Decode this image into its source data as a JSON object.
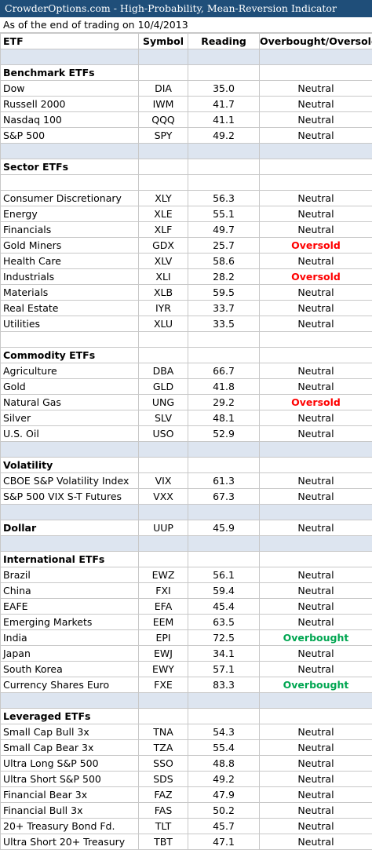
{
  "title": "CrowderOptions.com - High-Probability, Mean-Reversion Indicator",
  "subtitle": "As of the end of trading on 10/4/2013",
  "headers": [
    "ETF",
    "Symbol",
    "Reading",
    "Overbought/Oversold"
  ],
  "rows": [
    {
      "kind": "blank"
    },
    {
      "kind": "section",
      "label": "Benchmark ETFs"
    },
    {
      "kind": "data",
      "etf": "Dow",
      "symbol": "DIA",
      "reading": "35.0",
      "signal": "Neutral"
    },
    {
      "kind": "data",
      "etf": "Russell 2000",
      "symbol": "IWM",
      "reading": "41.7",
      "signal": "Neutral"
    },
    {
      "kind": "data",
      "etf": "Nasdaq 100",
      "symbol": "QQQ",
      "reading": "41.1",
      "signal": "Neutral"
    },
    {
      "kind": "data",
      "etf": "S&P 500",
      "symbol": "SPY",
      "reading": "49.2",
      "signal": "Neutral"
    },
    {
      "kind": "blank"
    },
    {
      "kind": "section",
      "label": "Sector ETFs"
    },
    {
      "kind": "empty"
    },
    {
      "kind": "data",
      "etf": "Consumer Discretionary",
      "symbol": "XLY",
      "reading": "56.3",
      "signal": "Neutral"
    },
    {
      "kind": "data",
      "etf": "Energy",
      "symbol": "XLE",
      "reading": "55.1",
      "signal": "Neutral"
    },
    {
      "kind": "data",
      "etf": "Financials",
      "symbol": "XLF",
      "reading": "49.7",
      "signal": "Neutral"
    },
    {
      "kind": "data",
      "etf": "Gold Miners",
      "symbol": "GDX",
      "reading": "25.7",
      "signal": "Oversold"
    },
    {
      "kind": "data",
      "etf": "Health Care",
      "symbol": "XLV",
      "reading": "58.6",
      "signal": "Neutral"
    },
    {
      "kind": "data",
      "etf": "Industrials",
      "symbol": "XLI",
      "reading": "28.2",
      "signal": "Oversold"
    },
    {
      "kind": "data",
      "etf": "Materials",
      "symbol": "XLB",
      "reading": "59.5",
      "signal": "Neutral"
    },
    {
      "kind": "data",
      "etf": "Real Estate",
      "symbol": "IYR",
      "reading": "33.7",
      "signal": "Neutral"
    },
    {
      "kind": "data",
      "etf": "Utilities",
      "symbol": "XLU",
      "reading": "33.5",
      "signal": "Neutral"
    },
    {
      "kind": "empty"
    },
    {
      "kind": "section",
      "label": "Commodity ETFs"
    },
    {
      "kind": "data",
      "etf": "Agriculture",
      "symbol": "DBA",
      "reading": "66.7",
      "signal": "Neutral"
    },
    {
      "kind": "data",
      "etf": "Gold",
      "symbol": "GLD",
      "reading": "41.8",
      "signal": "Neutral"
    },
    {
      "kind": "data",
      "etf": "Natural Gas",
      "symbol": "UNG",
      "reading": "29.2",
      "signal": "Oversold"
    },
    {
      "kind": "data",
      "etf": "Silver",
      "symbol": "SLV",
      "reading": "48.1",
      "signal": "Neutral"
    },
    {
      "kind": "data",
      "etf": "U.S. Oil",
      "symbol": "USO",
      "reading": "52.9",
      "signal": "Neutral"
    },
    {
      "kind": "blank"
    },
    {
      "kind": "section",
      "label": "Volatility"
    },
    {
      "kind": "data",
      "etf": "CBOE S&P Volatility Index",
      "symbol": "VIX",
      "reading": "61.3",
      "signal": "Neutral"
    },
    {
      "kind": "data",
      "etf": "S&P 500 VIX S-T Futures",
      "symbol": "VXX",
      "reading": "67.3",
      "signal": "Neutral"
    },
    {
      "kind": "blank"
    },
    {
      "kind": "section-data",
      "etf": "Dollar",
      "symbol": "UUP",
      "reading": "45.9",
      "signal": "Neutral"
    },
    {
      "kind": "blank"
    },
    {
      "kind": "section",
      "label": "International ETFs"
    },
    {
      "kind": "data",
      "etf": "Brazil",
      "symbol": "EWZ",
      "reading": "56.1",
      "signal": "Neutral"
    },
    {
      "kind": "data",
      "etf": "China",
      "symbol": "FXI",
      "reading": "59.4",
      "signal": "Neutral"
    },
    {
      "kind": "data",
      "etf": "EAFE",
      "symbol": "EFA",
      "reading": "45.4",
      "signal": "Neutral"
    },
    {
      "kind": "data",
      "etf": "Emerging Markets",
      "symbol": "EEM",
      "reading": "63.5",
      "signal": "Neutral"
    },
    {
      "kind": "data",
      "etf": "India",
      "symbol": "EPI",
      "reading": "72.5",
      "signal": "Overbought"
    },
    {
      "kind": "data",
      "etf": "Japan",
      "symbol": "EWJ",
      "reading": "34.1",
      "signal": "Neutral"
    },
    {
      "kind": "data",
      "etf": "South Korea",
      "symbol": "EWY",
      "reading": "57.1",
      "signal": "Neutral"
    },
    {
      "kind": "data",
      "etf": "Currency Shares Euro",
      "symbol": "FXE",
      "reading": "83.3",
      "signal": "Overbought"
    },
    {
      "kind": "blank"
    },
    {
      "kind": "section",
      "label": "Leveraged ETFs"
    },
    {
      "kind": "data",
      "etf": "Small Cap Bull 3x",
      "symbol": "TNA",
      "reading": "54.3",
      "signal": "Neutral"
    },
    {
      "kind": "data",
      "etf": "Small Cap Bear 3x",
      "symbol": "TZA",
      "reading": "55.4",
      "signal": "Neutral"
    },
    {
      "kind": "data",
      "etf": "Ultra Long S&P 500",
      "symbol": "SSO",
      "reading": "48.8",
      "signal": "Neutral"
    },
    {
      "kind": "data",
      "etf": "Ultra Short S&P 500",
      "symbol": "SDS",
      "reading": "49.2",
      "signal": "Neutral"
    },
    {
      "kind": "data",
      "etf": "Financial Bear 3x",
      "symbol": "FAZ",
      "reading": "47.9",
      "signal": "Neutral"
    },
    {
      "kind": "data",
      "etf": "Financial Bull 3x",
      "symbol": "FAS",
      "reading": "50.2",
      "signal": "Neutral"
    },
    {
      "kind": "data",
      "etf": "20+ Treasury Bond Fd.",
      "symbol": "TLT",
      "reading": "45.7",
      "signal": "Neutral"
    },
    {
      "kind": "data",
      "etf": "Ultra Short 20+ Treasury",
      "symbol": "TBT",
      "reading": "47.1",
      "signal": "Neutral"
    }
  ],
  "colors": {
    "title_bg": "#1f4e79",
    "blank_row_bg": "#dde5f0",
    "oversold": "#ff0000",
    "overbought": "#00a651"
  }
}
